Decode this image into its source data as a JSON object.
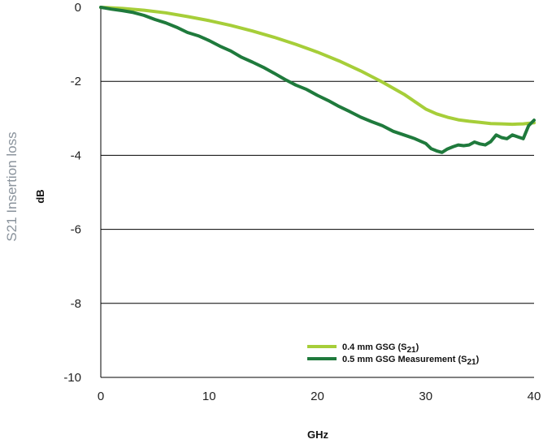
{
  "chart_data": {
    "type": "line",
    "side_title": "S21 Insertion loss",
    "ylabel": "dB",
    "xlabel": "GHz",
    "xlim": [
      0,
      40
    ],
    "ylim": [
      -10,
      0
    ],
    "x_ticks": [
      "0",
      "10",
      "20",
      "30",
      "40"
    ],
    "y_ticks": [
      "0",
      "-2",
      "-4",
      "-6",
      "-8",
      "-10"
    ],
    "grid": "horizontal",
    "legend_placement": "bottom-right",
    "series": [
      {
        "name": "0.4 mm GSG (S21)",
        "label_main": "0.4 mm GSG (S",
        "label_sub": "21",
        "label_end": ")",
        "color": "#a6ce39",
        "x": [
          0,
          2,
          4,
          6,
          8,
          10,
          12,
          14,
          16,
          18,
          20,
          22,
          24,
          26,
          28,
          29,
          30,
          31,
          32,
          33,
          34,
          35,
          36,
          37,
          38,
          39,
          40
        ],
        "y": [
          0,
          -0.03,
          -0.08,
          -0.15,
          -0.25,
          -0.36,
          -0.49,
          -0.64,
          -0.81,
          -1.0,
          -1.21,
          -1.45,
          -1.72,
          -2.02,
          -2.35,
          -2.55,
          -2.75,
          -2.88,
          -2.97,
          -3.04,
          -3.08,
          -3.11,
          -3.14,
          -3.15,
          -3.16,
          -3.15,
          -3.12
        ]
      },
      {
        "name": "0.5 mm GSG Measurement (S21)",
        "label_main": "0.5 mm GSG Measurement (S",
        "label_sub": "21",
        "label_end": ")",
        "color": "#1f7a3c",
        "x": [
          0,
          1,
          2,
          3,
          4,
          5,
          6,
          7,
          8,
          9,
          10,
          11,
          12,
          13,
          14,
          15,
          16,
          17,
          18,
          19,
          20,
          21,
          22,
          23,
          24,
          25,
          26,
          27,
          28,
          29,
          30,
          30.5,
          31,
          31.5,
          32,
          32.5,
          33,
          33.5,
          34,
          34.5,
          35,
          35.5,
          36,
          36.5,
          37,
          37.5,
          38,
          38.5,
          39,
          39.5,
          40
        ],
        "y": [
          0,
          -0.05,
          -0.09,
          -0.14,
          -0.22,
          -0.33,
          -0.42,
          -0.54,
          -0.68,
          -0.77,
          -0.9,
          -1.05,
          -1.18,
          -1.35,
          -1.48,
          -1.62,
          -1.78,
          -1.95,
          -2.1,
          -2.22,
          -2.38,
          -2.52,
          -2.68,
          -2.82,
          -2.97,
          -3.09,
          -3.2,
          -3.35,
          -3.45,
          -3.55,
          -3.68,
          -3.82,
          -3.88,
          -3.92,
          -3.83,
          -3.77,
          -3.72,
          -3.74,
          -3.72,
          -3.64,
          -3.69,
          -3.72,
          -3.63,
          -3.45,
          -3.52,
          -3.55,
          -3.45,
          -3.5,
          -3.55,
          -3.2,
          -3.05
        ]
      }
    ]
  }
}
